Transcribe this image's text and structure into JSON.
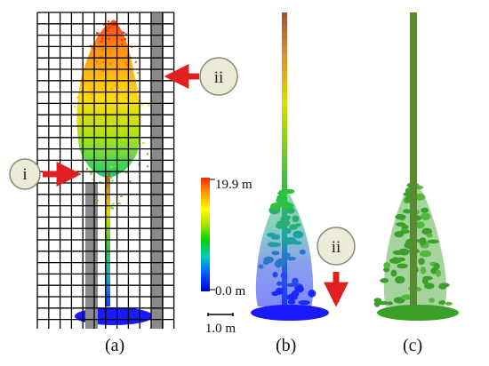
{
  "panels": {
    "a": {
      "caption": "(a)"
    },
    "b": {
      "caption": "(b)"
    },
    "c": {
      "caption": "(c)"
    }
  },
  "markers": {
    "i": "i",
    "ii_a": "ii",
    "ii_b": "ii"
  },
  "colorbar": {
    "max_label": "19.9 m",
    "min_label": "0.0 m",
    "stops": [
      "#0000c8",
      "#0050ff",
      "#00c8c8",
      "#00d200",
      "#b4e600",
      "#ffff00",
      "#ffa000",
      "#ff2800"
    ]
  },
  "scalebar": {
    "label": "1.0 m"
  },
  "colors": {
    "arrow": "#e02020",
    "badge_fill": "#ebebd8",
    "badge_stroke": "#8a8a7a",
    "grid": "#000000",
    "occlusion": "#8a8a8a",
    "green_cloud": "#3aa02a",
    "trunk_c": "#5a8a30"
  }
}
